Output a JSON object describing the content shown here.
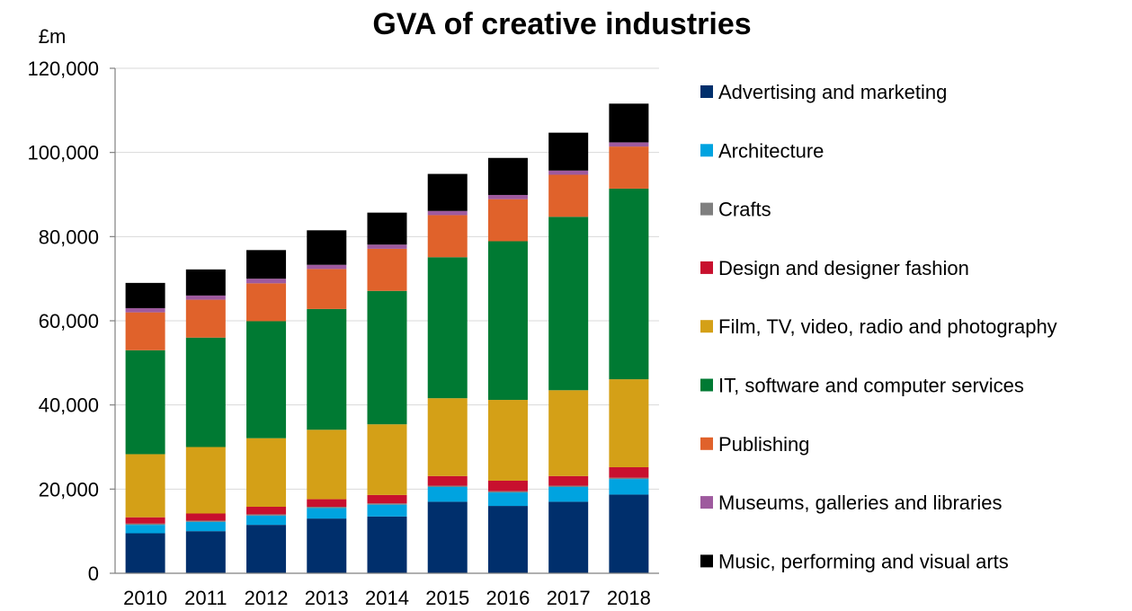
{
  "chart_data": {
    "type": "bar",
    "stacked": true,
    "title": "GVA of creative industries",
    "unit_label": "£m",
    "xlabel": "",
    "ylabel": "",
    "ylim": [
      0,
      120000
    ],
    "yticks": [
      0,
      20000,
      40000,
      60000,
      80000,
      100000,
      120000
    ],
    "ytick_labels": [
      "0",
      "20,000",
      "40,000",
      "60,000",
      "80,000",
      "100,000",
      "120,000"
    ],
    "grid": true,
    "legend_position": "right",
    "categories": [
      "2010",
      "2011",
      "2012",
      "2013",
      "2014",
      "2015",
      "2016",
      "2017",
      "2018"
    ],
    "series": [
      {
        "name": "Advertising and marketing",
        "color": "#002f6c",
        "values": [
          9500,
          10000,
          11500,
          13000,
          13500,
          17000,
          16000,
          17000,
          18700
        ]
      },
      {
        "name": "Architecture",
        "color": "#00a3e0",
        "values": [
          2000,
          2200,
          2200,
          2500,
          2800,
          3500,
          3200,
          3500,
          3700
        ]
      },
      {
        "name": "Crafts",
        "color": "#7f7f7f",
        "values": [
          300,
          300,
          300,
          300,
          300,
          300,
          300,
          300,
          300
        ]
      },
      {
        "name": "Design and designer fashion",
        "color": "#c8102e",
        "values": [
          1500,
          1700,
          1800,
          1800,
          2000,
          2300,
          2500,
          2300,
          2500
        ]
      },
      {
        "name": "Film, TV, video, radio and photography",
        "color": "#d4a017",
        "values": [
          15000,
          15800,
          16300,
          16500,
          16800,
          18500,
          19200,
          20400,
          20900
        ]
      },
      {
        "name": "IT, software and computer services",
        "color": "#007a33",
        "values": [
          24700,
          26000,
          27800,
          28700,
          31700,
          33500,
          37700,
          41200,
          45300
        ]
      },
      {
        "name": "Publishing",
        "color": "#e0622b",
        "values": [
          9000,
          9000,
          9000,
          9500,
          10000,
          10000,
          10000,
          10000,
          10000
        ]
      },
      {
        "name": "Museums, galleries and libraries",
        "color": "#9e5a9e",
        "values": [
          1000,
          1000,
          1100,
          1000,
          1000,
          1000,
          1000,
          1000,
          1000
        ]
      },
      {
        "name": "Music, performing and visual arts",
        "color": "#000000",
        "values": [
          6000,
          6200,
          6800,
          8200,
          7600,
          8800,
          8800,
          9000,
          9200
        ]
      }
    ]
  }
}
